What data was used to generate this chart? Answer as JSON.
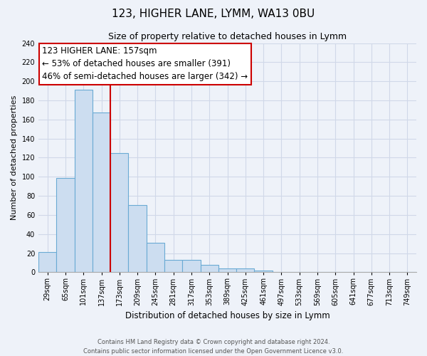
{
  "title": "123, HIGHER LANE, LYMM, WA13 0BU",
  "subtitle": "Size of property relative to detached houses in Lymm",
  "xlabel": "Distribution of detached houses by size in Lymm",
  "ylabel": "Number of detached properties",
  "bar_labels": [
    "29sqm",
    "65sqm",
    "101sqm",
    "137sqm",
    "173sqm",
    "209sqm",
    "245sqm",
    "281sqm",
    "317sqm",
    "353sqm",
    "389sqm",
    "425sqm",
    "461sqm",
    "497sqm",
    "533sqm",
    "569sqm",
    "605sqm",
    "641sqm",
    "677sqm",
    "713sqm",
    "749sqm"
  ],
  "bar_values": [
    21,
    99,
    191,
    167,
    125,
    70,
    31,
    13,
    13,
    8,
    4,
    4,
    2,
    0,
    0,
    0,
    0,
    0,
    0,
    0,
    0
  ],
  "bar_color": "#ccddf0",
  "bar_edge_color": "#6aaad4",
  "ylim": [
    0,
    240
  ],
  "yticks": [
    0,
    20,
    40,
    60,
    80,
    100,
    120,
    140,
    160,
    180,
    200,
    220,
    240
  ],
  "vline_x_index": 3.5,
  "vline_color": "#cc0000",
  "annotation_title": "123 HIGHER LANE: 157sqm",
  "annotation_line1": "← 53% of detached houses are smaller (391)",
  "annotation_line2": "46% of semi-detached houses are larger (342) →",
  "footer_line1": "Contains HM Land Registry data © Crown copyright and database right 2024.",
  "footer_line2": "Contains public sector information licensed under the Open Government Licence v3.0.",
  "background_color": "#eef2f9",
  "grid_color": "#d0d8e8",
  "annotation_fontsize": 8.5,
  "title_fontsize": 11,
  "subtitle_fontsize": 9,
  "xlabel_fontsize": 8.5,
  "ylabel_fontsize": 8,
  "tick_fontsize": 7,
  "footer_fontsize": 6
}
